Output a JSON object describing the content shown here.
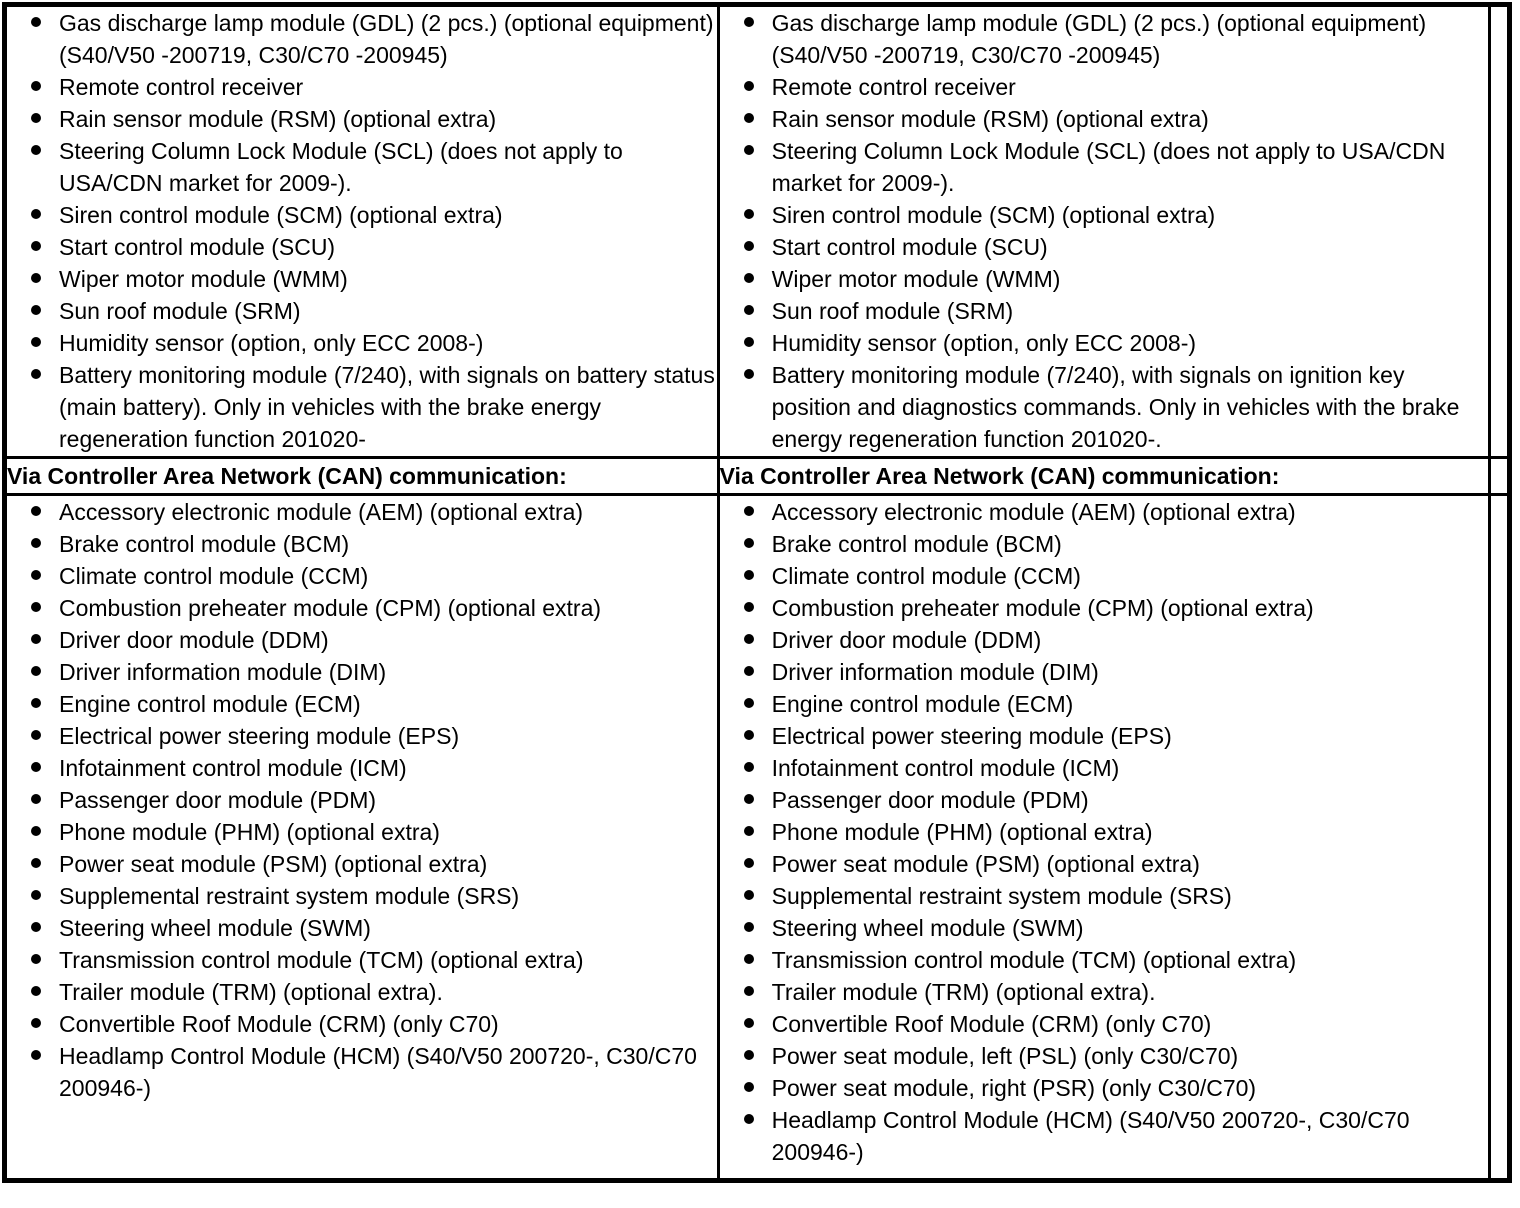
{
  "table": {
    "columns": [
      {
        "top_items": [
          "Gas discharge lamp module (GDL) (2 pcs.) (optional equipment) (S40/V50 -200719, C30/C70 -200945)",
          "Remote control receiver",
          "Rain sensor module (RSM) (optional extra)",
          "Steering Column Lock Module (SCL) (does not apply to USA/CDN market for 2009-).",
          "Siren control module (SCM) (optional extra)",
          "Start control module (SCU)",
          "Wiper motor module (WMM)",
          "Sun roof module (SRM)",
          "Humidity sensor (option, only ECC 2008-)",
          "Battery monitoring module (7/240), with signals on battery status (main battery). Only in vehicles with the brake energy regeneration function 201020-"
        ],
        "can_header": "Via Controller Area Network (CAN) communication:",
        "can_items": [
          "Accessory electronic module (AEM) (optional extra)",
          "Brake control module (BCM)",
          "Climate control module (CCM)",
          "Combustion preheater module (CPM) (optional extra)",
          "Driver door module (DDM)",
          "Driver information module (DIM)",
          "Engine control module (ECM)",
          "Electrical power steering module (EPS)",
          "Infotainment control module (ICM)",
          "Passenger door module (PDM)",
          "Phone module (PHM) (optional extra)",
          "Power seat module (PSM) (optional extra)",
          "Supplemental restraint system module (SRS)",
          "Steering wheel module (SWM)",
          "Transmission control module (TCM) (optional extra)",
          "Trailer module (TRM) (optional extra).",
          "Convertible Roof Module (CRM) (only C70)",
          "Headlamp Control Module (HCM) (S40/V50 200720-, C30/C70 200946-)"
        ]
      },
      {
        "top_items": [
          "Gas discharge lamp module (GDL) (2 pcs.) (optional equipment) (S40/V50 -200719, C30/C70 -200945)",
          "Remote control receiver",
          "Rain sensor module (RSM) (optional extra)",
          "Steering Column Lock Module (SCL) (does not apply to USA/CDN market for 2009-).",
          "Siren control module (SCM) (optional extra)",
          "Start control module (SCU)",
          "Wiper motor module (WMM)",
          "Sun roof module (SRM)",
          "Humidity sensor (option, only ECC 2008-)",
          "Battery monitoring module (7/240), with signals on ignition key position and diagnostics commands. Only in vehicles with the brake energy regeneration function 201020-."
        ],
        "can_header": "Via Controller Area Network (CAN) communication:",
        "can_items": [
          "Accessory electronic module (AEM) (optional extra)",
          "Brake control module (BCM)",
          "Climate control module (CCM)",
          "Combustion preheater module (CPM) (optional extra)",
          "Driver door module (DDM)",
          "Driver information module (DIM)",
          "Engine control module (ECM)",
          "Electrical power steering module (EPS)",
          "Infotainment control module (ICM)",
          "Passenger door module (PDM)",
          "Phone module (PHM) (optional extra)",
          "Power seat module (PSM) (optional extra)",
          "Supplemental restraint system module (SRS)",
          "Steering wheel module (SWM)",
          "Transmission control module (TCM) (optional extra)",
          "Trailer module (TRM) (optional extra).",
          "Convertible Roof Module (CRM) (only C70)",
          "Power seat module, left (PSL) (only C30/C70)",
          "Power seat module, right (PSR) (only C30/C70)",
          "Headlamp Control Module (HCM) (S40/V50 200720-, C30/C70 200946-)"
        ]
      }
    ],
    "colors": {
      "text": "#000000",
      "border": "#000000",
      "background": "#ffffff"
    }
  }
}
